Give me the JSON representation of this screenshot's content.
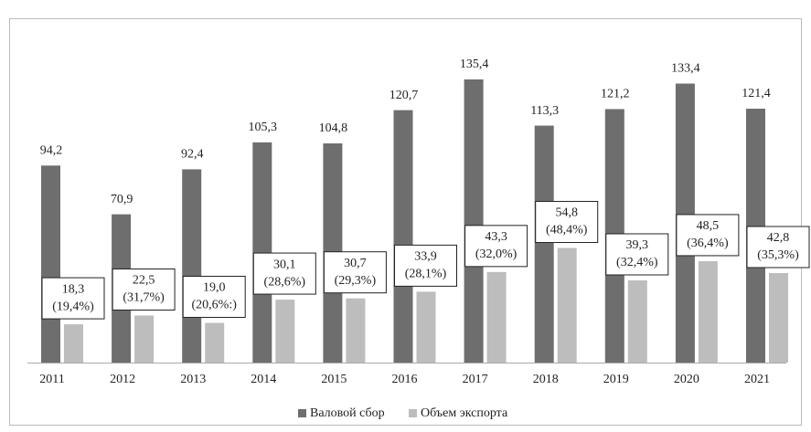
{
  "chart_data": {
    "type": "bar",
    "categories": [
      "2011",
      "2012",
      "2013",
      "2014",
      "2015",
      "2016",
      "2017",
      "2018",
      "2019",
      "2020",
      "2021"
    ],
    "series": [
      {
        "name": "Валовой сбор",
        "color": "#6e6e6e",
        "values": [
          94.2,
          70.9,
          92.4,
          105.3,
          104.8,
          120.7,
          135.4,
          113.3,
          121.2,
          133.4,
          121.4
        ],
        "value_labels": [
          "94,2",
          "70,9",
          "92,4",
          "105,3",
          "104,8",
          "120,7",
          "135,4",
          "113,3",
          "121,2",
          "133,4",
          "121,4"
        ]
      },
      {
        "name": "Объем экспорта",
        "color": "#bdbdbd",
        "values": [
          18.3,
          22.5,
          19.0,
          30.1,
          30.7,
          33.9,
          43.3,
          54.8,
          39.3,
          48.5,
          42.8
        ],
        "value_labels": [
          "18,3",
          "22,5",
          "19,0",
          "30,1",
          "30,7",
          "33,9",
          "43,3",
          "54,8",
          "39,3",
          "48,5",
          "42,8"
        ],
        "share_labels": [
          "(19,4%)",
          "(31,7%)",
          "(20,6%:)",
          "(28,6%)",
          "(29,3%)",
          "(28,1%)",
          "(32,0%)",
          "(48,4%)",
          "(32,4%)",
          "(36,4%)",
          "(35,3%)"
        ]
      }
    ],
    "legend": "bottom"
  }
}
